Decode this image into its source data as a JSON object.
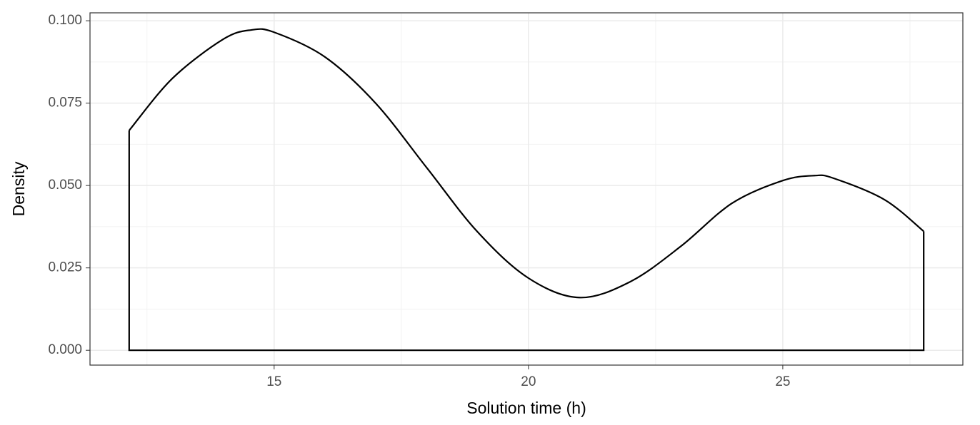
{
  "chart_data": {
    "type": "density",
    "x_label": "Solution time (h)",
    "y_label": "Density",
    "x": [
      12.15,
      13,
      14,
      14.55,
      15,
      16,
      17,
      18,
      19,
      20,
      21,
      22,
      23,
      24,
      25,
      25.62,
      26,
      27,
      27.77
    ],
    "values": [
      0.0667,
      0.0825,
      0.0944,
      0.0972,
      0.0965,
      0.089,
      0.0749,
      0.0554,
      0.0359,
      0.0219,
      0.016,
      0.0208,
      0.0316,
      0.0446,
      0.0515,
      0.053,
      0.0522,
      0.0457,
      0.0361
    ],
    "color": "#000000",
    "xlim": [
      11.38,
      28.54
    ],
    "ylim": [
      -0.0045,
      0.1024
    ],
    "xticks": [
      15,
      20,
      25
    ],
    "yticks": [
      {
        "value": 0,
        "label": "0.000"
      },
      {
        "value": 0.025,
        "label": "0.025"
      },
      {
        "value": 0.05,
        "label": "0.050"
      },
      {
        "value": 0.075,
        "label": "0.075"
      },
      {
        "value": 0.1,
        "label": "0.100"
      }
    ],
    "grid": true
  }
}
